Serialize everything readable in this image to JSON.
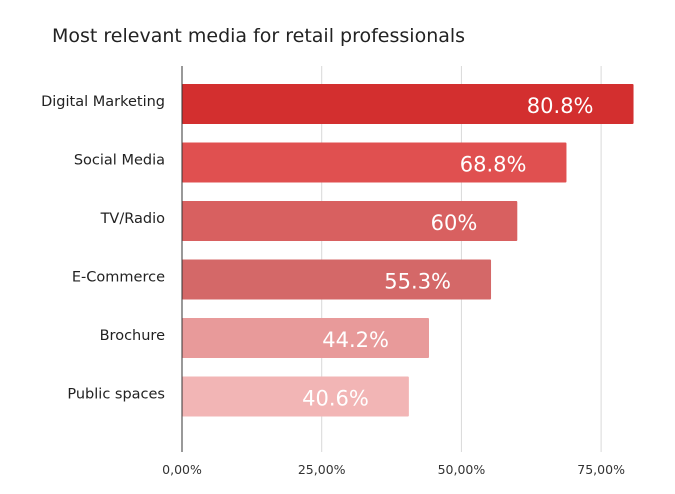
{
  "chart_data": {
    "type": "bar",
    "orientation": "horizontal",
    "title": "Most relevant media for retail professionals",
    "xlabel": "",
    "ylabel": "",
    "categories": [
      "Digital Marketing",
      "Social Media",
      "TV/Radio",
      "E-Commerce",
      "Brochure",
      "Public spaces"
    ],
    "values": [
      80.8,
      68.8,
      60,
      55.3,
      44.2,
      40.6
    ],
    "data_labels": [
      "80.8%",
      "68.8%",
      "60%",
      "55.3%",
      "44.2%",
      "40.6%"
    ],
    "bar_colors": [
      "#d32f2f",
      "#e05050",
      "#d86060",
      "#d46868",
      "#e89a9a",
      "#f2b5b5"
    ],
    "xlim": [
      0,
      85
    ],
    "xticks": [
      0,
      25,
      50,
      75
    ],
    "xtick_labels": [
      "0,00%",
      "25,00%",
      "50,00%",
      "75,00%"
    ],
    "grid": "vertical",
    "legend": "none"
  }
}
